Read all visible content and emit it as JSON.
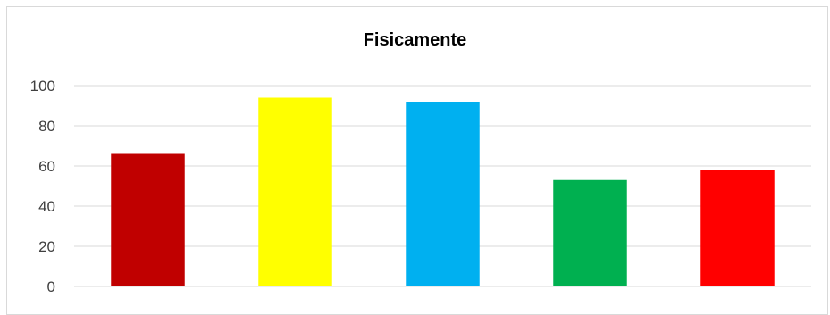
{
  "chart_data": {
    "type": "bar",
    "title": "Fisicamente",
    "xlabel": "",
    "ylabel": "",
    "categories": [
      "",
      "",
      "",
      "",
      ""
    ],
    "values": [
      66,
      94,
      92,
      53,
      58
    ],
    "colors": [
      "#c00000",
      "#ffff00",
      "#00b0f0",
      "#00b050",
      "#ff0000"
    ],
    "ylim": [
      0,
      100
    ],
    "yticks": [
      0,
      20,
      40,
      60,
      80,
      100
    ],
    "grid": true,
    "legend": "none"
  }
}
